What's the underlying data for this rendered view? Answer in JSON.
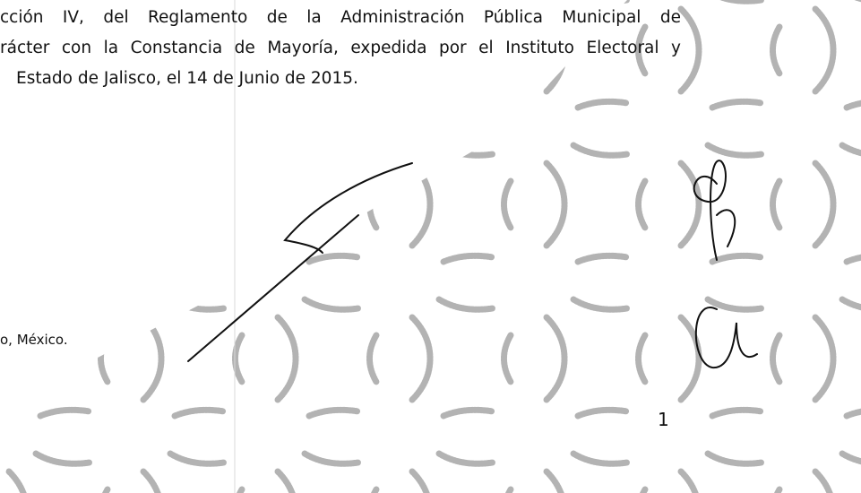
{
  "body": {
    "lines": [
      "cción IV, del Reglamento de la Administración Pública Municipal de",
      "rácter con la Constancia de Mayoría, expedida por el Instituto Electoral y",
      "Estado de Jalisco, el 14 de Junio de 2015."
    ]
  },
  "footer": {
    "location": "o, México.",
    "page_number": "1"
  }
}
